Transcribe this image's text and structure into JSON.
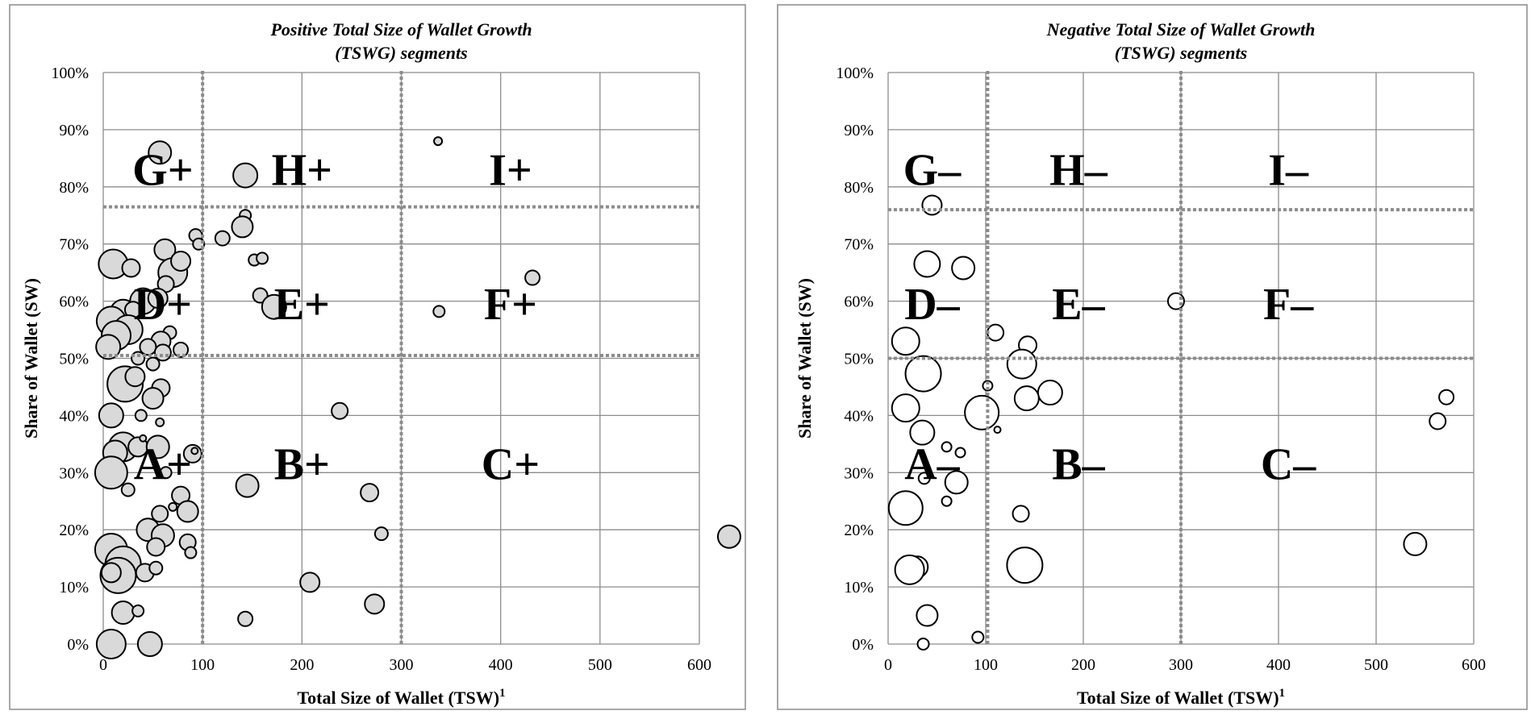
{
  "chart_data": [
    {
      "type": "bubble",
      "title": "Positive Total Size of Wallet Growth (TSWG) segments",
      "title_lines": [
        "Positive Total Size of Wallet Growth",
        "(TSWG) segments"
      ],
      "xlabel": "Total Size of Wallet (TSW)",
      "xlabel_superscript": "1",
      "ylabel": "Share of Wallet (SW)",
      "xlim": [
        0,
        600
      ],
      "ylim": [
        0,
        1
      ],
      "x_ticks": [
        "0",
        "100",
        "200",
        "300",
        "400",
        "500",
        "600"
      ],
      "y_ticks": [
        "0%",
        "10%",
        "20%",
        "30%",
        "40%",
        "50%",
        "60%",
        "70%",
        "80%",
        "90%",
        "100%"
      ],
      "grid": true,
      "bubble_fill": "#d9d9d9",
      "bubble_stroke": "#000000",
      "divider_color": "#8c8c8c",
      "dividers": {
        "x": [
          100,
          300
        ],
        "y": [
          0.765,
          0.505
        ]
      },
      "segments": [
        {
          "label": "G+",
          "x": 60,
          "y": 0.83
        },
        {
          "label": "H+",
          "x": 200,
          "y": 0.83
        },
        {
          "label": "I+",
          "x": 410,
          "y": 0.83
        },
        {
          "label": "D+",
          "x": 60,
          "y": 0.595
        },
        {
          "label": "E+",
          "x": 200,
          "y": 0.595
        },
        {
          "label": "F+",
          "x": 410,
          "y": 0.595
        },
        {
          "label": "A+",
          "x": 60,
          "y": 0.315
        },
        {
          "label": "B+",
          "x": 200,
          "y": 0.315
        },
        {
          "label": "C+",
          "x": 410,
          "y": 0.315
        }
      ],
      "points": [
        {
          "x": 57,
          "y": 0.86,
          "r": 14
        },
        {
          "x": 143,
          "y": 0.82,
          "r": 15
        },
        {
          "x": 337,
          "y": 0.88,
          "r": 5
        },
        {
          "x": 143,
          "y": 0.75,
          "r": 7
        },
        {
          "x": 140,
          "y": 0.73,
          "r": 13
        },
        {
          "x": 120,
          "y": 0.71,
          "r": 9
        },
        {
          "x": 93,
          "y": 0.715,
          "r": 8
        },
        {
          "x": 96,
          "y": 0.7,
          "r": 7
        },
        {
          "x": 152,
          "y": 0.672,
          "r": 7
        },
        {
          "x": 160,
          "y": 0.675,
          "r": 7
        },
        {
          "x": 158,
          "y": 0.61,
          "r": 9
        },
        {
          "x": 172,
          "y": 0.59,
          "r": 15
        },
        {
          "x": 338,
          "y": 0.582,
          "r": 7
        },
        {
          "x": 432,
          "y": 0.641,
          "r": 9
        },
        {
          "x": 10,
          "y": 0.665,
          "r": 18
        },
        {
          "x": 28,
          "y": 0.658,
          "r": 11
        },
        {
          "x": 62,
          "y": 0.69,
          "r": 13
        },
        {
          "x": 70,
          "y": 0.65,
          "r": 18
        },
        {
          "x": 78,
          "y": 0.67,
          "r": 12
        },
        {
          "x": 63,
          "y": 0.63,
          "r": 10
        },
        {
          "x": 40,
          "y": 0.6,
          "r": 16
        },
        {
          "x": 55,
          "y": 0.605,
          "r": 12
        },
        {
          "x": 20,
          "y": 0.58,
          "r": 16
        },
        {
          "x": 8,
          "y": 0.565,
          "r": 18
        },
        {
          "x": 30,
          "y": 0.585,
          "r": 10
        },
        {
          "x": 25,
          "y": 0.55,
          "r": 18
        },
        {
          "x": 13,
          "y": 0.54,
          "r": 18
        },
        {
          "x": 5,
          "y": 0.52,
          "r": 15
        },
        {
          "x": 67,
          "y": 0.545,
          "r": 8
        },
        {
          "x": 58,
          "y": 0.53,
          "r": 12
        },
        {
          "x": 45,
          "y": 0.52,
          "r": 10
        },
        {
          "x": 60,
          "y": 0.51,
          "r": 10
        },
        {
          "x": 78,
          "y": 0.515,
          "r": 9
        },
        {
          "x": 35,
          "y": 0.5,
          "r": 8
        },
        {
          "x": 50,
          "y": 0.49,
          "r": 8
        },
        {
          "x": 22,
          "y": 0.455,
          "r": 22
        },
        {
          "x": 32,
          "y": 0.468,
          "r": 12
        },
        {
          "x": 58,
          "y": 0.448,
          "r": 11
        },
        {
          "x": 50,
          "y": 0.43,
          "r": 13
        },
        {
          "x": 38,
          "y": 0.4,
          "r": 7
        },
        {
          "x": 57,
          "y": 0.388,
          "r": 5
        },
        {
          "x": 8,
          "y": 0.4,
          "r": 15
        },
        {
          "x": 238,
          "y": 0.408,
          "r": 10
        },
        {
          "x": 20,
          "y": 0.345,
          "r": 18
        },
        {
          "x": 35,
          "y": 0.345,
          "r": 12
        },
        {
          "x": 55,
          "y": 0.345,
          "r": 14
        },
        {
          "x": 40,
          "y": 0.36,
          "r": 4
        },
        {
          "x": 12,
          "y": 0.335,
          "r": 15
        },
        {
          "x": 90,
          "y": 0.333,
          "r": 11
        },
        {
          "x": 92,
          "y": 0.338,
          "r": 4
        },
        {
          "x": 8,
          "y": 0.3,
          "r": 20
        },
        {
          "x": 63,
          "y": 0.3,
          "r": 7
        },
        {
          "x": 25,
          "y": 0.27,
          "r": 8
        },
        {
          "x": 145,
          "y": 0.277,
          "r": 14
        },
        {
          "x": 268,
          "y": 0.265,
          "r": 11
        },
        {
          "x": 78,
          "y": 0.26,
          "r": 11
        },
        {
          "x": 85,
          "y": 0.232,
          "r": 13
        },
        {
          "x": 57,
          "y": 0.228,
          "r": 10
        },
        {
          "x": 70,
          "y": 0.24,
          "r": 5
        },
        {
          "x": 45,
          "y": 0.2,
          "r": 14
        },
        {
          "x": 60,
          "y": 0.19,
          "r": 14
        },
        {
          "x": 53,
          "y": 0.17,
          "r": 11
        },
        {
          "x": 85,
          "y": 0.178,
          "r": 10
        },
        {
          "x": 88,
          "y": 0.16,
          "r": 7
        },
        {
          "x": 280,
          "y": 0.193,
          "r": 8
        },
        {
          "x": 630,
          "y": 0.188,
          "r": 14
        },
        {
          "x": 8,
          "y": 0.165,
          "r": 20
        },
        {
          "x": 20,
          "y": 0.14,
          "r": 22
        },
        {
          "x": 15,
          "y": 0.12,
          "r": 22
        },
        {
          "x": 8,
          "y": 0.125,
          "r": 12
        },
        {
          "x": 42,
          "y": 0.125,
          "r": 11
        },
        {
          "x": 53,
          "y": 0.133,
          "r": 8
        },
        {
          "x": 208,
          "y": 0.108,
          "r": 12
        },
        {
          "x": 20,
          "y": 0.055,
          "r": 14
        },
        {
          "x": 35,
          "y": 0.058,
          "r": 7
        },
        {
          "x": 273,
          "y": 0.07,
          "r": 12
        },
        {
          "x": 143,
          "y": 0.044,
          "r": 9
        },
        {
          "x": 8,
          "y": 0.0,
          "r": 18
        },
        {
          "x": 47,
          "y": 0.0,
          "r": 15
        }
      ]
    },
    {
      "type": "bubble",
      "title": "Negative Total Size of Wallet Growth (TSWG) segments",
      "title_lines": [
        "Negative Total Size of Wallet Growth",
        "(TSWG) segments"
      ],
      "xlabel": "Total Size of Wallet (TSW)",
      "xlabel_superscript": "1",
      "ylabel": "Share of Wallet (SW)",
      "xlim": [
        0,
        600
      ],
      "ylim": [
        0,
        1
      ],
      "x_ticks": [
        "0",
        "100",
        "200",
        "300",
        "400",
        "500",
        "600"
      ],
      "y_ticks": [
        "0%",
        "10%",
        "20%",
        "30%",
        "40%",
        "50%",
        "60%",
        "70%",
        "80%",
        "90%",
        "100%"
      ],
      "grid": true,
      "bubble_fill": "#ffffff",
      "bubble_stroke": "#000000",
      "divider_color": "#8c8c8c",
      "dividers": {
        "x": [
          102,
          300
        ],
        "y": [
          0.76,
          0.5
        ]
      },
      "segments": [
        {
          "label": "G–",
          "x": 45,
          "y": 0.83
        },
        {
          "label": "H–",
          "x": 195,
          "y": 0.83
        },
        {
          "label": "I–",
          "x": 410,
          "y": 0.83
        },
        {
          "label": "D–",
          "x": 45,
          "y": 0.595
        },
        {
          "label": "E–",
          "x": 195,
          "y": 0.595
        },
        {
          "label": "F–",
          "x": 410,
          "y": 0.595
        },
        {
          "label": "A–",
          "x": 45,
          "y": 0.315
        },
        {
          "label": "B–",
          "x": 195,
          "y": 0.315
        },
        {
          "label": "C–",
          "x": 410,
          "y": 0.315
        }
      ],
      "points": [
        {
          "x": 45,
          "y": 0.768,
          "r": 12
        },
        {
          "x": 40,
          "y": 0.665,
          "r": 16
        },
        {
          "x": 77,
          "y": 0.658,
          "r": 14
        },
        {
          "x": 295,
          "y": 0.6,
          "r": 10
        },
        {
          "x": 110,
          "y": 0.545,
          "r": 10
        },
        {
          "x": 18,
          "y": 0.53,
          "r": 17
        },
        {
          "x": 143,
          "y": 0.523,
          "r": 11
        },
        {
          "x": 137,
          "y": 0.49,
          "r": 18
        },
        {
          "x": 36,
          "y": 0.473,
          "r": 22
        },
        {
          "x": 102,
          "y": 0.452,
          "r": 6
        },
        {
          "x": 166,
          "y": 0.44,
          "r": 15
        },
        {
          "x": 142,
          "y": 0.43,
          "r": 15
        },
        {
          "x": 572,
          "y": 0.432,
          "r": 9
        },
        {
          "x": 563,
          "y": 0.39,
          "r": 10
        },
        {
          "x": 96,
          "y": 0.405,
          "r": 21
        },
        {
          "x": 112,
          "y": 0.375,
          "r": 4
        },
        {
          "x": 18,
          "y": 0.413,
          "r": 17
        },
        {
          "x": 35,
          "y": 0.37,
          "r": 15
        },
        {
          "x": 60,
          "y": 0.345,
          "r": 6
        },
        {
          "x": 74,
          "y": 0.335,
          "r": 6
        },
        {
          "x": 37,
          "y": 0.29,
          "r": 7
        },
        {
          "x": 70,
          "y": 0.283,
          "r": 14
        },
        {
          "x": 60,
          "y": 0.25,
          "r": 6
        },
        {
          "x": 18,
          "y": 0.238,
          "r": 21
        },
        {
          "x": 136,
          "y": 0.228,
          "r": 10
        },
        {
          "x": 540,
          "y": 0.175,
          "r": 14
        },
        {
          "x": 30,
          "y": 0.135,
          "r": 13
        },
        {
          "x": 22,
          "y": 0.13,
          "r": 18
        },
        {
          "x": 140,
          "y": 0.138,
          "r": 22
        },
        {
          "x": 40,
          "y": 0.05,
          "r": 13
        },
        {
          "x": 92,
          "y": 0.012,
          "r": 7
        },
        {
          "x": 36,
          "y": 0.0,
          "r": 7
        }
      ]
    }
  ]
}
